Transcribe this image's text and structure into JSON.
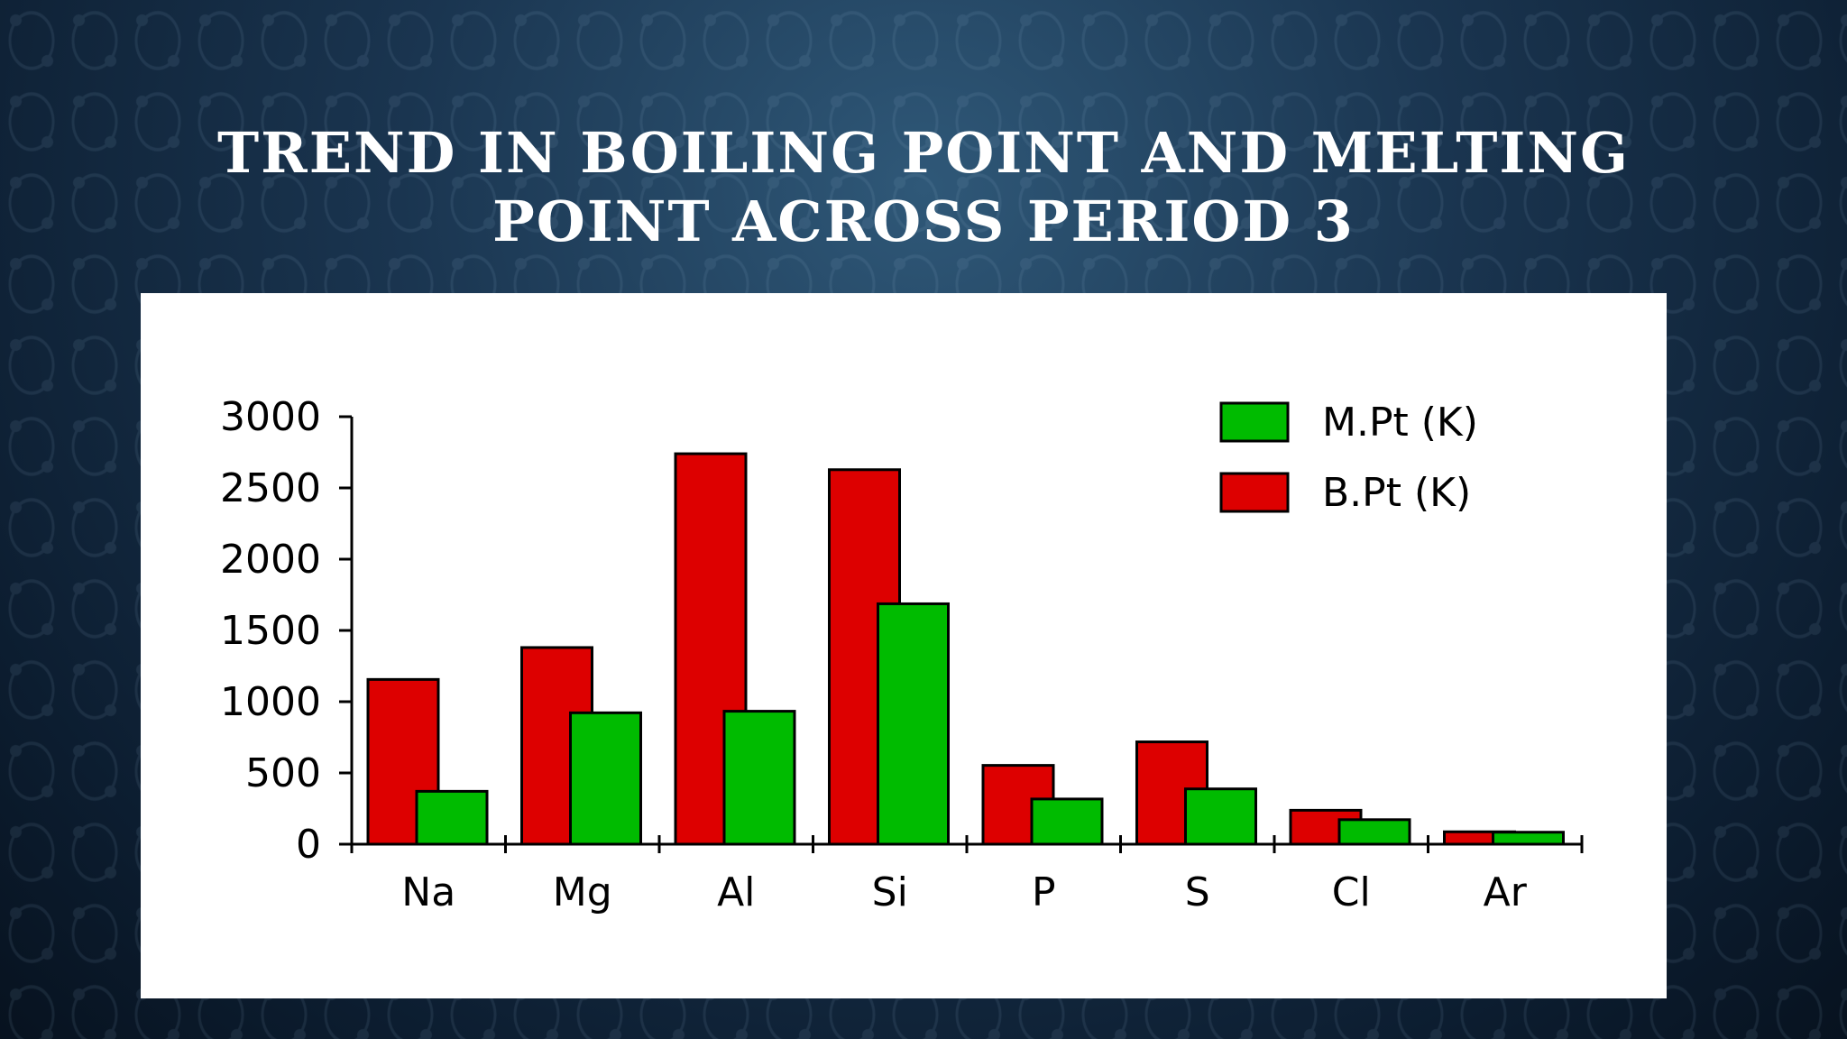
{
  "slide": {
    "title_line1": "TREND IN BOILING POINT AND MELTING",
    "title_line2": "POINT ACROSS PERIOD 3"
  },
  "chart_data": {
    "type": "bar",
    "categories": [
      "Na",
      "Mg",
      "Al",
      "Si",
      "P",
      "S",
      "Cl",
      "Ar"
    ],
    "series": [
      {
        "name": "B.Pt (K)",
        "color": "#dd0000",
        "values": [
          1156,
          1380,
          2740,
          2628,
          553,
          718,
          238,
          87
        ]
      },
      {
        "name": "M.Pt (K)",
        "color": "#00bb00",
        "values": [
          371,
          922,
          933,
          1687,
          317,
          388,
          172,
          84
        ]
      }
    ],
    "legend_order": [
      "M.Pt (K)",
      "B.Pt (K)"
    ],
    "legend_position": "top-right",
    "ylim": [
      0,
      3000
    ],
    "yticks": [
      "0",
      "500",
      "1000",
      "1500",
      "2000",
      "2500",
      "3000"
    ],
    "grid": false
  }
}
